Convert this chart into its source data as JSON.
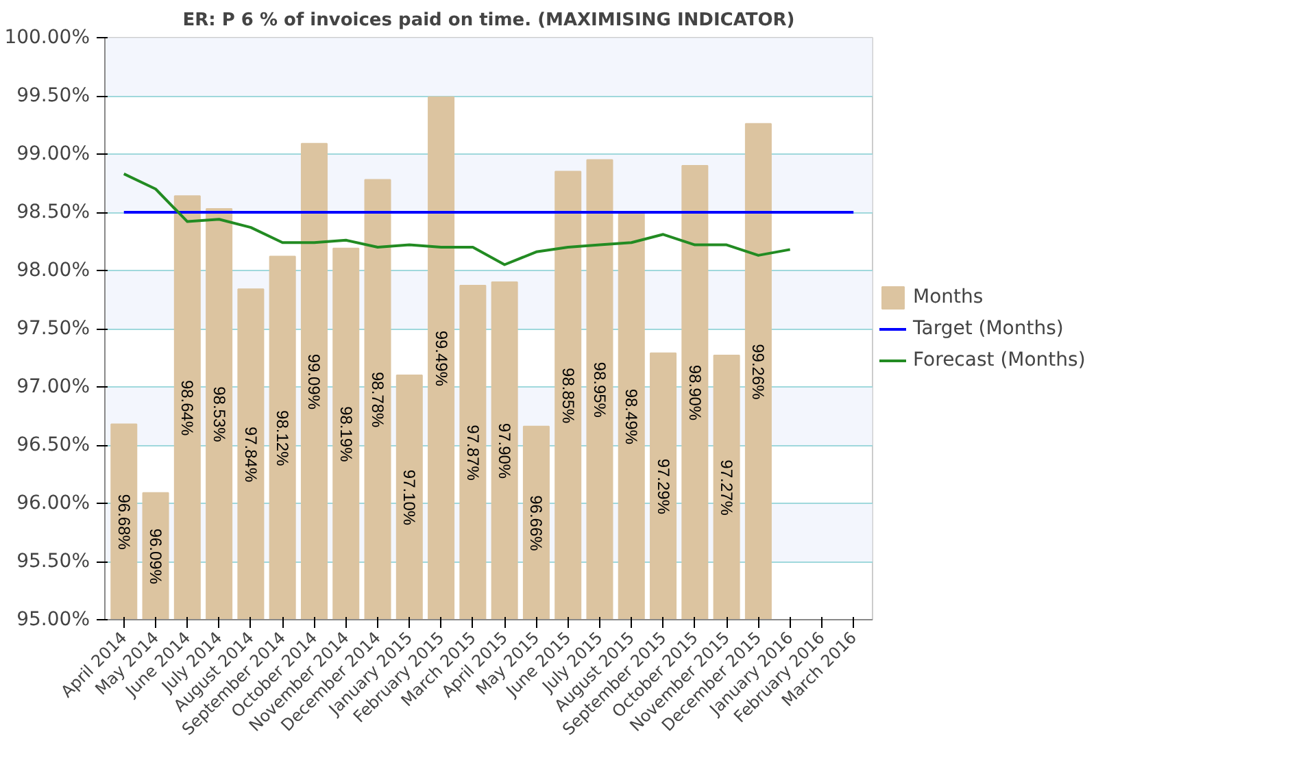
{
  "chart_data": {
    "type": "bar",
    "title": "ER: P 6 % of invoices paid on time. (MAXIMISING INDICATOR)",
    "categories": [
      "April 2014",
      "May 2014",
      "June 2014",
      "July 2014",
      "August 2014",
      "September 2014",
      "October 2014",
      "November 2014",
      "December 2014",
      "January 2015",
      "February 2015",
      "March 2015",
      "April 2015",
      "May 2015",
      "June 2015",
      "July 2015",
      "August 2015",
      "September 2015",
      "October 2015",
      "November 2015",
      "December 2015",
      "January 2016",
      "February 2016",
      "March 2016"
    ],
    "series": [
      {
        "name": "Months",
        "color": "#dcc4a0",
        "values": [
          96.68,
          96.09,
          98.64,
          98.53,
          97.84,
          98.12,
          99.09,
          98.19,
          98.78,
          97.1,
          99.49,
          97.87,
          97.9,
          96.66,
          98.85,
          98.95,
          98.49,
          97.29,
          98.9,
          97.27,
          99.26,
          null,
          null,
          null
        ]
      },
      {
        "name": "Target (Months)",
        "type": "line",
        "color": "#0000ff",
        "values": [
          98.5,
          98.5,
          98.5,
          98.5,
          98.5,
          98.5,
          98.5,
          98.5,
          98.5,
          98.5,
          98.5,
          98.5,
          98.5,
          98.5,
          98.5,
          98.5,
          98.5,
          98.5,
          98.5,
          98.5,
          98.5,
          98.5,
          98.5,
          98.5
        ]
      },
      {
        "name": "Forecast (Months)",
        "type": "line",
        "color": "#228b22",
        "values": [
          98.83,
          98.7,
          98.42,
          98.44,
          98.37,
          98.24,
          98.24,
          98.26,
          98.2,
          98.22,
          98.2,
          98.2,
          98.05,
          98.16,
          98.2,
          98.22,
          98.24,
          98.31,
          98.22,
          98.22,
          98.13,
          98.18,
          null,
          null
        ]
      }
    ],
    "ylim": [
      95,
      100
    ],
    "yticks": [
      {
        "value": 95,
        "label": "95.00%"
      },
      {
        "value": 95.5,
        "label": "95.50%"
      },
      {
        "value": 96,
        "label": "96.00%"
      },
      {
        "value": 96.5,
        "label": "96.50%"
      },
      {
        "value": 97,
        "label": "97.00%"
      },
      {
        "value": 97.5,
        "label": "97.50%"
      },
      {
        "value": 98,
        "label": "98.00%"
      },
      {
        "value": 98.5,
        "label": "98.50%"
      },
      {
        "value": 99,
        "label": "99.00%"
      },
      {
        "value": 99.5,
        "label": "99.50%"
      },
      {
        "value": 100,
        "label": "100.00%"
      }
    ],
    "value_labels": [
      "96.68%",
      "96.09%",
      "98.64%",
      "98.53%",
      "97.84%",
      "98.12%",
      "99.09%",
      "98.19%",
      "98.78%",
      "97.10%",
      "99.49%",
      "97.87%",
      "97.90%",
      "96.66%",
      "98.85%",
      "98.95%",
      "98.49%",
      "97.29%",
      "98.90%",
      "97.27%",
      "99.26%",
      null,
      null,
      null
    ],
    "grid": "y",
    "legend": "right"
  }
}
